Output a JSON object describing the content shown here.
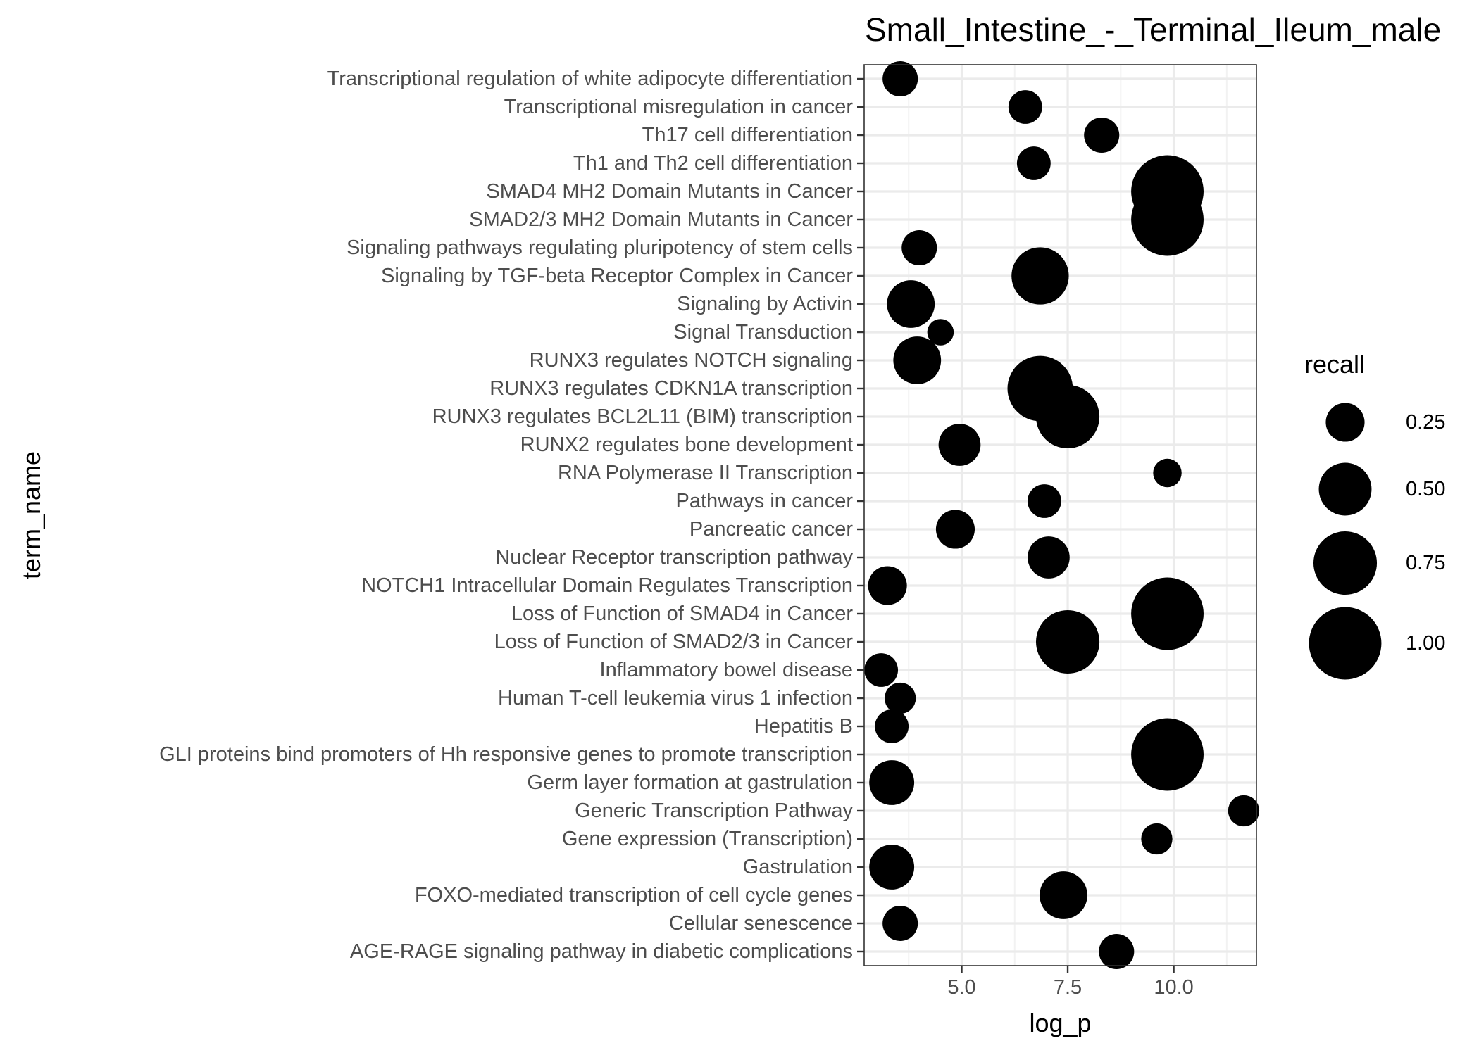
{
  "chart_data": {
    "type": "scatter",
    "title": "Small_Intestine_-_Terminal_Ileum_male",
    "xlabel": "log_p",
    "ylabel": "term_name",
    "xlim": [
      2.7,
      11.95
    ],
    "xticks": [
      5.0,
      7.5,
      10.0
    ],
    "xtick_labels": [
      "5.0",
      "7.5",
      "10.0"
    ],
    "grid": true,
    "size_scale": {
      "min": 0.09,
      "max": 1.2
    },
    "legend": {
      "title": "recall",
      "position": "right",
      "entries": [
        {
          "label": "0.25",
          "value": 0.25
        },
        {
          "label": "0.50",
          "value": 0.5
        },
        {
          "label": "0.75",
          "value": 0.75
        },
        {
          "label": "1.00",
          "value": 1.0
        }
      ]
    },
    "points": [
      {
        "term": "AGE-RAGE signaling pathway in diabetic complications",
        "x": 8.65,
        "recall": 0.2
      },
      {
        "term": "Cellular senescence",
        "x": 3.55,
        "recall": 0.2
      },
      {
        "term": "FOXO-mediated transcription of cell cycle genes",
        "x": 7.4,
        "recall": 0.4
      },
      {
        "term": "Gastrulation",
        "x": 3.35,
        "recall": 0.35
      },
      {
        "term": "Gene expression (Transcription)",
        "x": 9.6,
        "recall": 0.15
      },
      {
        "term": "Generic Transcription Pathway",
        "x": 11.65,
        "recall": 0.15
      },
      {
        "term": "Germ layer formation at gastrulation",
        "x": 3.35,
        "recall": 0.35
      },
      {
        "term": "GLI proteins bind promoters of Hh responsive genes to promote transcription",
        "x": 9.85,
        "recall": 1.0
      },
      {
        "term": "Hepatitis B",
        "x": 3.35,
        "recall": 0.18
      },
      {
        "term": "Human T-cell leukemia virus 1 infection",
        "x": 3.55,
        "recall": 0.15
      },
      {
        "term": "Inflammatory bowel disease",
        "x": 3.1,
        "recall": 0.18
      },
      {
        "term": "Loss of Function of SMAD2/3 in Cancer",
        "x": 7.5,
        "recall": 0.75
      },
      {
        "term": "Loss of Function of SMAD4 in Cancer",
        "x": 9.85,
        "recall": 1.0
      },
      {
        "term": "NOTCH1 Intracellular Domain Regulates Transcription",
        "x": 3.25,
        "recall": 0.25
      },
      {
        "term": "Nuclear Receptor transcription pathway",
        "x": 7.05,
        "recall": 0.3
      },
      {
        "term": "Pancreatic cancer",
        "x": 4.85,
        "recall": 0.25
      },
      {
        "term": "Pathways in cancer",
        "x": 6.95,
        "recall": 0.18
      },
      {
        "term": "RNA Polymerase II Transcription",
        "x": 9.85,
        "recall": 0.12
      },
      {
        "term": "RUNX2 regulates bone development",
        "x": 4.95,
        "recall": 0.3
      },
      {
        "term": "RUNX3 regulates BCL2L11 (BIM) transcription",
        "x": 7.5,
        "recall": 0.75
      },
      {
        "term": "RUNX3 regulates CDKN1A transcription",
        "x": 6.85,
        "recall": 0.8
      },
      {
        "term": "RUNX3 regulates NOTCH signaling",
        "x": 3.95,
        "recall": 0.4
      },
      {
        "term": "Signal Transduction",
        "x": 4.5,
        "recall": 0.1
      },
      {
        "term": "Signaling by Activin",
        "x": 3.8,
        "recall": 0.4
      },
      {
        "term": "Signaling by TGF-beta Receptor Complex in Cancer",
        "x": 6.85,
        "recall": 0.6
      },
      {
        "term": "Signaling pathways regulating pluripotency of stem cells",
        "x": 4.0,
        "recall": 0.2
      },
      {
        "term": "SMAD2/3 MH2 Domain Mutants in Cancer",
        "x": 9.85,
        "recall": 1.0
      },
      {
        "term": "SMAD4 MH2 Domain Mutants in Cancer",
        "x": 9.85,
        "recall": 1.0
      },
      {
        "term": "Th1 and Th2 cell differentiation",
        "x": 6.7,
        "recall": 0.18
      },
      {
        "term": "Th17 cell differentiation",
        "x": 8.3,
        "recall": 0.2
      },
      {
        "term": "Transcriptional misregulation in cancer",
        "x": 6.5,
        "recall": 0.18
      },
      {
        "term": "Transcriptional regulation of white adipocyte differentiation",
        "x": 3.55,
        "recall": 0.2
      }
    ]
  }
}
